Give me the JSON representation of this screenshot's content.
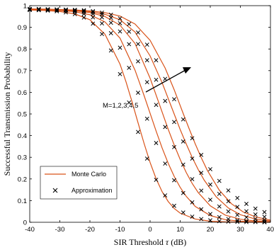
{
  "chart_data": {
    "type": "line",
    "xlabel_main": "SIR Threshold ",
    "xlabel_symbol": "τ",
    "xlabel_unit": " (dB)",
    "ylabel": "Successful Transmission Probability",
    "xlim": [
      -40,
      40
    ],
    "ylim": [
      0,
      1
    ],
    "x_ticks": [
      -40,
      -30,
      -20,
      -10,
      0,
      10,
      20,
      30,
      40
    ],
    "y_ticks": [
      0,
      0.1,
      0.2,
      0.3,
      0.4,
      0.5,
      0.6,
      0.7,
      0.8,
      0.9,
      1
    ],
    "grid": false,
    "legend": {
      "placement": "bottom-left",
      "entries": [
        {
          "label": "Monte Carlo",
          "style": "line",
          "color": "#d95319"
        },
        {
          "label": "Approximation",
          "style": "x-marker",
          "color": "#000000"
        }
      ]
    },
    "annotation": {
      "text": "M=1,2,3,4,5"
    },
    "curve_color": "#d95319",
    "marker_color": "#000000",
    "series": [
      {
        "line": {
          "x": [
            -40,
            -35,
            -30,
            -25,
            -20,
            -15,
            -10,
            -8,
            -6,
            -4,
            -2,
            0,
            2,
            4,
            6,
            8,
            10,
            15,
            20,
            25,
            30,
            35,
            40
          ],
          "y": [
            0.98,
            0.978,
            0.973,
            0.962,
            0.935,
            0.868,
            0.73,
            0.648,
            0.556,
            0.459,
            0.364,
            0.276,
            0.201,
            0.141,
            0.096,
            0.064,
            0.042,
            0.015,
            0.005,
            0.002,
            0.001,
            0.0,
            0.0
          ]
        },
        "markers": {
          "x": [
            -40,
            -37,
            -34,
            -31,
            -28,
            -25,
            -22,
            -19,
            -16,
            -13,
            -10,
            -7,
            -4,
            -1,
            2,
            5,
            8,
            11,
            14,
            17,
            20,
            23,
            26,
            29,
            32,
            35,
            38
          ],
          "y": [
            0.98,
            0.979,
            0.977,
            0.974,
            0.969,
            0.961,
            0.945,
            0.917,
            0.869,
            0.793,
            0.684,
            0.553,
            0.417,
            0.294,
            0.196,
            0.124,
            0.076,
            0.045,
            0.026,
            0.015,
            0.009,
            0.005,
            0.003,
            0.002,
            0.001,
            0.001,
            0.0
          ]
        }
      },
      {
        "line": {
          "x": [
            -40,
            -35,
            -30,
            -25,
            -20,
            -15,
            -10,
            -5,
            -2,
            0,
            2,
            4,
            6,
            8,
            10,
            12,
            15,
            20,
            25,
            30,
            35,
            40
          ],
          "y": [
            0.982,
            0.981,
            0.978,
            0.972,
            0.958,
            0.925,
            0.85,
            0.702,
            0.585,
            0.503,
            0.421,
            0.343,
            0.273,
            0.212,
            0.161,
            0.12,
            0.073,
            0.031,
            0.012,
            0.005,
            0.002,
            0.001
          ]
        },
        "markers": {
          "x": [
            -40,
            -37,
            -34,
            -31,
            -28,
            -25,
            -22,
            -19,
            -16,
            -13,
            -10,
            -7,
            -4,
            -1,
            2,
            5,
            8,
            11,
            14,
            17,
            20,
            23,
            26,
            29,
            32,
            35,
            38
          ],
          "y": [
            0.982,
            0.981,
            0.98,
            0.978,
            0.976,
            0.971,
            0.962,
            0.946,
            0.918,
            0.873,
            0.806,
            0.713,
            0.598,
            0.478,
            0.366,
            0.271,
            0.194,
            0.135,
            0.092,
            0.06,
            0.038,
            0.024,
            0.015,
            0.009,
            0.005,
            0.003,
            0.002
          ]
        }
      },
      {
        "line": {
          "x": [
            -40,
            -35,
            -30,
            -25,
            -20,
            -15,
            -10,
            -5,
            0,
            3,
            6,
            8,
            10,
            12,
            14,
            16,
            20,
            25,
            30,
            35,
            40
          ],
          "y": [
            0.983,
            0.982,
            0.98,
            0.976,
            0.968,
            0.95,
            0.91,
            0.825,
            0.665,
            0.548,
            0.43,
            0.357,
            0.29,
            0.23,
            0.179,
            0.137,
            0.076,
            0.033,
            0.014,
            0.006,
            0.002
          ]
        },
        "markers": {
          "x": [
            -40,
            -37,
            -34,
            -31,
            -28,
            -25,
            -22,
            -19,
            -16,
            -13,
            -10,
            -7,
            -4,
            -1,
            2,
            5,
            8,
            11,
            14,
            17,
            20,
            23,
            26,
            29,
            32,
            35,
            38
          ],
          "y": [
            0.983,
            0.983,
            0.982,
            0.981,
            0.979,
            0.976,
            0.971,
            0.962,
            0.946,
            0.921,
            0.881,
            0.822,
            0.743,
            0.647,
            0.542,
            0.44,
            0.347,
            0.266,
            0.199,
            0.146,
            0.104,
            0.073,
            0.05,
            0.034,
            0.023,
            0.015,
            0.01
          ]
        }
      },
      {
        "line": {
          "x": [
            -40,
            -35,
            -30,
            -25,
            -20,
            -15,
            -10,
            -5,
            0,
            4,
            7,
            10,
            12,
            14,
            16,
            18,
            22,
            26,
            30,
            35,
            40
          ],
          "y": [
            0.984,
            0.983,
            0.981,
            0.978,
            0.972,
            0.96,
            0.935,
            0.878,
            0.768,
            0.644,
            0.536,
            0.428,
            0.362,
            0.299,
            0.243,
            0.194,
            0.117,
            0.066,
            0.035,
            0.015,
            0.006
          ]
        },
        "markers": {
          "x": [
            -40,
            -37,
            -34,
            -31,
            -28,
            -25,
            -22,
            -19,
            -16,
            -13,
            -10,
            -7,
            -4,
            -1,
            2,
            5,
            8,
            11,
            14,
            17,
            20,
            23,
            26,
            29,
            32,
            35,
            38
          ],
          "y": [
            0.984,
            0.984,
            0.983,
            0.982,
            0.981,
            0.979,
            0.976,
            0.97,
            0.96,
            0.944,
            0.919,
            0.88,
            0.823,
            0.748,
            0.658,
            0.56,
            0.463,
            0.373,
            0.294,
            0.228,
            0.174,
            0.131,
            0.097,
            0.071,
            0.051,
            0.036,
            0.025
          ]
        }
      },
      {
        "line": {
          "x": [
            -40,
            -35,
            -30,
            -25,
            -20,
            -15,
            -10,
            -5,
            0,
            5,
            8,
            11,
            13,
            15,
            17,
            19,
            23,
            27,
            31,
            35,
            40
          ],
          "y": [
            0.985,
            0.984,
            0.982,
            0.98,
            0.976,
            0.968,
            0.952,
            0.915,
            0.84,
            0.712,
            0.612,
            0.502,
            0.431,
            0.362,
            0.298,
            0.24,
            0.148,
            0.086,
            0.047,
            0.025,
            0.01
          ]
        },
        "markers": {
          "x": [
            -40,
            -37,
            -34,
            -31,
            -28,
            -25,
            -22,
            -19,
            -16,
            -13,
            -10,
            -7,
            -4,
            -1,
            2,
            5,
            8,
            11,
            14,
            17,
            20,
            23,
            26,
            29,
            32,
            35,
            38
          ],
          "y": [
            0.985,
            0.985,
            0.984,
            0.983,
            0.982,
            0.981,
            0.979,
            0.975,
            0.968,
            0.958,
            0.941,
            0.915,
            0.876,
            0.82,
            0.748,
            0.662,
            0.568,
            0.475,
            0.388,
            0.311,
            0.245,
            0.191,
            0.147,
            0.112,
            0.085,
            0.063,
            0.047
          ]
        }
      }
    ]
  }
}
